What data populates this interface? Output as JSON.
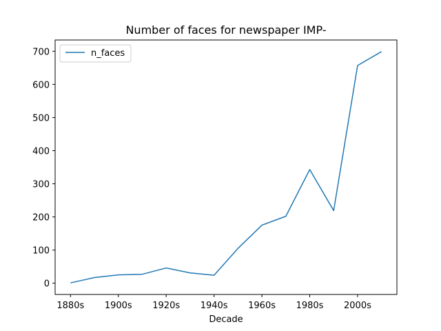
{
  "chart_data": {
    "type": "line",
    "title": "Number of faces for newspaper IMP-",
    "xlabel": "Decade",
    "ylabel": "",
    "categories": [
      "1880s",
      "1890s",
      "1900s",
      "1910s",
      "1920s",
      "1930s",
      "1940s",
      "1950s",
      "1960s",
      "1970s",
      "1980s",
      "1990s",
      "2000s",
      "2010s"
    ],
    "xtick_labels": [
      "1880s",
      "1900s",
      "1920s",
      "1940s",
      "1960s",
      "1980s",
      "2000s"
    ],
    "series": [
      {
        "name": "n_faces",
        "color": "#1f77b4",
        "values": [
          1,
          17,
          25,
          27,
          46,
          31,
          24,
          105,
          175,
          202,
          343,
          219,
          657,
          699
        ]
      }
    ],
    "yticks": [
      0,
      100,
      200,
      300,
      400,
      500,
      600,
      700
    ],
    "ylim": [
      -34,
      734
    ],
    "grid": false,
    "legend_position": "upper-left"
  }
}
